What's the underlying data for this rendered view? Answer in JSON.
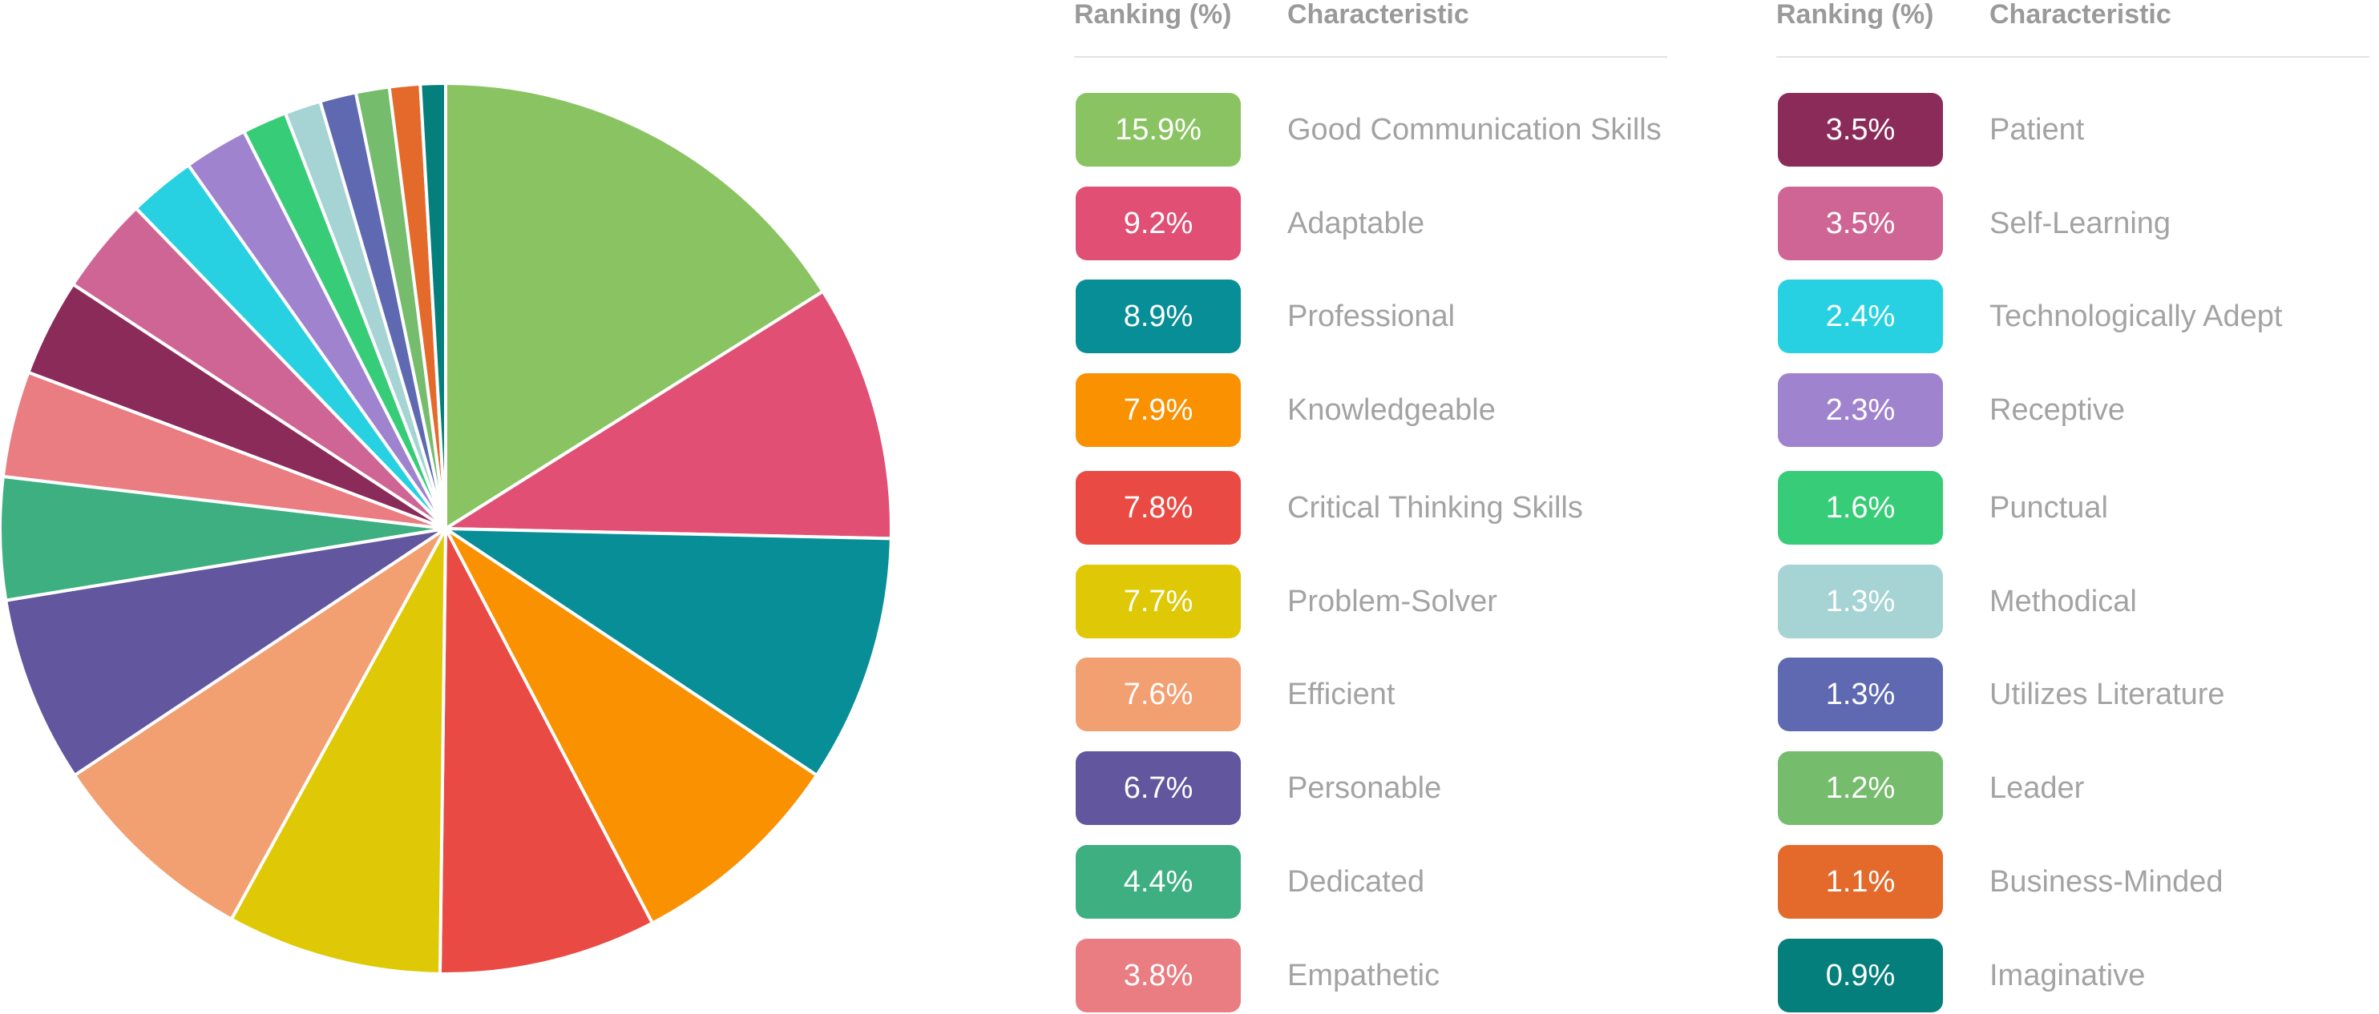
{
  "tables": [
    {
      "header": {
        "rank": "Ranking (%)",
        "characteristic": "Characteristic"
      },
      "rows": [
        {
          "value": "15.9%",
          "label": "Good Communication Skills",
          "color": "#8ac462"
        },
        {
          "value": "9.2%",
          "label": "Adaptable",
          "color": "#e14f74"
        },
        {
          "value": "8.9%",
          "label": "Professional",
          "color": "#088e97"
        },
        {
          "value": "7.9%",
          "label": "Knowledgeable",
          "color": "#f99101"
        },
        {
          "value": "7.8%",
          "label": "Critical Thinking Skills",
          "color": "#ea4a44"
        },
        {
          "value": "7.7%",
          "label": "Problem-Solver",
          "color": "#dfc806"
        },
        {
          "value": "7.6%",
          "label": "Efficient",
          "color": "#f29f71"
        },
        {
          "value": "6.7%",
          "label": "Personable",
          "color": "#62569f"
        },
        {
          "value": "4.4%",
          "label": "Dedicated",
          "color": "#3daf81"
        },
        {
          "value": "3.8%",
          "label": "Empathetic",
          "color": "#e97d82"
        }
      ]
    },
    {
      "header": {
        "rank": "Ranking (%)",
        "characteristic": "Characteristic"
      },
      "rows": [
        {
          "value": "3.5%",
          "label": "Patient",
          "color": "#8b2b5a"
        },
        {
          "value": "3.5%",
          "label": "Self-Learning",
          "color": "#cf6594"
        },
        {
          "value": "2.4%",
          "label": "Technologically Adept",
          "color": "#28d1e1"
        },
        {
          "value": "2.3%",
          "label": "Receptive",
          "color": "#9f83cf"
        },
        {
          "value": "1.6%",
          "label": "Punctual",
          "color": "#37cc78"
        },
        {
          "value": "1.3%",
          "label": "Methodical",
          "color": "#a6d3d3"
        },
        {
          "value": "1.3%",
          "label": "Utilizes Literature",
          "color": "#5f69b1"
        },
        {
          "value": "1.2%",
          "label": "Leader",
          "color": "#75bc6d"
        },
        {
          "value": "1.1%",
          "label": "Business-Minded",
          "color": "#e36a2a"
        },
        {
          "value": "0.9%",
          "label": "Imaginative",
          "color": "#057f7c"
        }
      ]
    }
  ],
  "chart_data": {
    "type": "pie",
    "categories": [
      "Good Communication Skills",
      "Adaptable",
      "Professional",
      "Knowledgeable",
      "Critical Thinking Skills",
      "Problem-Solver",
      "Efficient",
      "Personable",
      "Dedicated",
      "Empathetic",
      "Patient",
      "Self-Learning",
      "Technologically Adept",
      "Receptive",
      "Punctual",
      "Methodical",
      "Utilizes Literature",
      "Leader",
      "Business-Minded",
      "Imaginative"
    ],
    "values": [
      15.9,
      9.2,
      8.9,
      7.9,
      7.8,
      7.7,
      7.6,
      6.7,
      4.4,
      3.8,
      3.5,
      3.5,
      2.4,
      2.3,
      1.6,
      1.3,
      1.3,
      1.2,
      1.1,
      0.9
    ],
    "colors": [
      "#8ac462",
      "#e14f74",
      "#088e97",
      "#f99101",
      "#ea4a44",
      "#dfc806",
      "#f29f71",
      "#62569f",
      "#3daf81",
      "#e97d82",
      "#8b2b5a",
      "#cf6594",
      "#28d1e1",
      "#9f83cf",
      "#37cc78",
      "#a6d3d3",
      "#5f69b1",
      "#75bc6d",
      "#e36a2a",
      "#057f7c"
    ],
    "start": "12 o'clock",
    "direction": "clockwise"
  }
}
